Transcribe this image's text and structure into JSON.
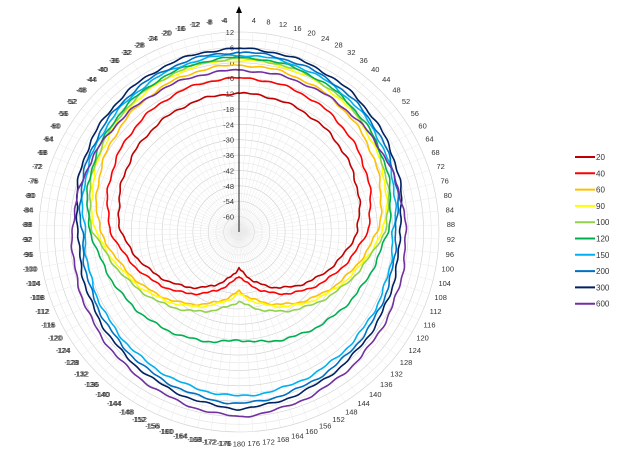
{
  "chart_data": {
    "type": "line",
    "subtype": "polar",
    "angle_ticks": [
      "4",
      "8",
      "12",
      "16",
      "20",
      "24",
      "28",
      "32",
      "36",
      "40",
      "44",
      "48",
      "52",
      "56",
      "60",
      "64",
      "68",
      "72",
      "76",
      "80",
      "84",
      "88",
      "92",
      "96",
      "100",
      "104",
      "108",
      "112",
      "116",
      "120",
      "124",
      "128",
      "132",
      "136",
      "140",
      "144",
      "148",
      "152",
      "156",
      "160",
      "164",
      "168",
      "172",
      "176",
      "180",
      "176",
      "172",
      "168",
      "164",
      "160",
      "156",
      "152",
      "148",
      "144",
      "140",
      "136",
      "132",
      "128",
      "124",
      "120",
      "116",
      "112",
      "108",
      "104",
      "100",
      "96",
      "92",
      "88",
      "84",
      "80",
      "76",
      "72",
      "68",
      "64",
      "60",
      "56",
      "52",
      "48",
      "44",
      "40",
      "36",
      "32",
      "28",
      "24",
      "20",
      "16",
      "12",
      "8",
      "4"
    ],
    "angle_tick_prefix_left": "-",
    "radial_ticks": [
      "12",
      "6",
      "0",
      "-6",
      "-12",
      "-18",
      "-24",
      "-30",
      "-36",
      "-42",
      "-48",
      "-54",
      "-60"
    ],
    "radial_range_db": [
      -66,
      12
    ],
    "grid": true,
    "legend_position": "right",
    "series": [
      {
        "name": "20",
        "color": "#c00000",
        "front_db": -12,
        "side_db": -20,
        "back_db": -52,
        "rear_sharpness": 1.0
      },
      {
        "name": "40",
        "color": "#ff0000",
        "front_db": -6,
        "side_db": -16,
        "back_db": -49,
        "rear_sharpness": 1.1
      },
      {
        "name": "60",
        "color": "#ffc000",
        "front_db": -1,
        "side_db": -12,
        "back_db": -43,
        "rear_sharpness": 1.2
      },
      {
        "name": "90",
        "color": "#ffff00",
        "front_db": 1,
        "side_db": -10,
        "back_db": -42,
        "rear_sharpness": 1.3
      },
      {
        "name": "100",
        "color": "#92d050",
        "front_db": 1.5,
        "side_db": -9,
        "back_db": -39,
        "rear_sharpness": 1.4
      },
      {
        "name": "120",
        "color": "#00b050",
        "front_db": 2,
        "side_db": -8,
        "back_db": -24,
        "rear_sharpness": 1.5
      },
      {
        "name": "150",
        "color": "#00b0f0",
        "front_db": 3,
        "side_db": -6,
        "back_db": -2,
        "rear_sharpness": 0.6
      },
      {
        "name": "200",
        "color": "#0070c0",
        "front_db": 4,
        "side_db": -5,
        "back_db": 1,
        "rear_sharpness": 0.6
      },
      {
        "name": "300",
        "color": "#002060",
        "front_db": 5.5,
        "side_db": -3.5,
        "back_db": 3,
        "rear_sharpness": 0.6
      },
      {
        "name": "600",
        "color": "#7030a0",
        "front_db": -3,
        "side_db": -1,
        "back_db": 6,
        "rear_sharpness": 0.6
      }
    ]
  }
}
